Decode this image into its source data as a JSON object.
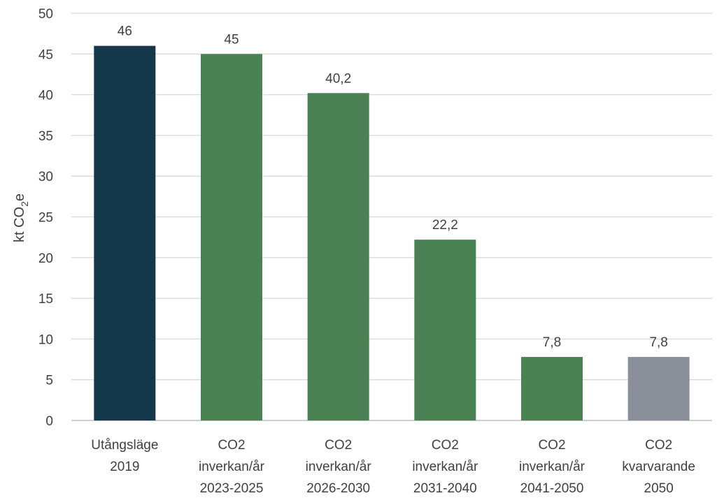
{
  "chart_data": {
    "type": "bar",
    "categories": [
      [
        "Utångsläge",
        "2019"
      ],
      [
        "CO2",
        "inverkan/år",
        "2023-2025"
      ],
      [
        "CO2",
        "inverkan/år",
        "2026-2030"
      ],
      [
        "CO2",
        "inverkan/år",
        "2031-2040"
      ],
      [
        "CO2",
        "inverkan/år",
        "2041-2050"
      ],
      [
        "CO2",
        "kvarvarande",
        "2050"
      ]
    ],
    "values": [
      46,
      45,
      40.2,
      22.2,
      7.8,
      7.8
    ],
    "data_labels": [
      "46",
      "45",
      "40,2",
      "22,2",
      "7,8",
      "7,8"
    ],
    "bar_colors": [
      "#14374a",
      "#4a8253",
      "#4a8253",
      "#4a8253",
      "#4a8253",
      "#8a8f99"
    ],
    "title": "",
    "xlabel": "",
    "ylabel": {
      "main": "kt CO",
      "sub": "2",
      "suffix": "e"
    },
    "ylim": [
      0,
      50
    ],
    "yticks": [
      0,
      5,
      10,
      15,
      20,
      25,
      30,
      35,
      40,
      45,
      50
    ],
    "grid": true,
    "legend": "none"
  }
}
